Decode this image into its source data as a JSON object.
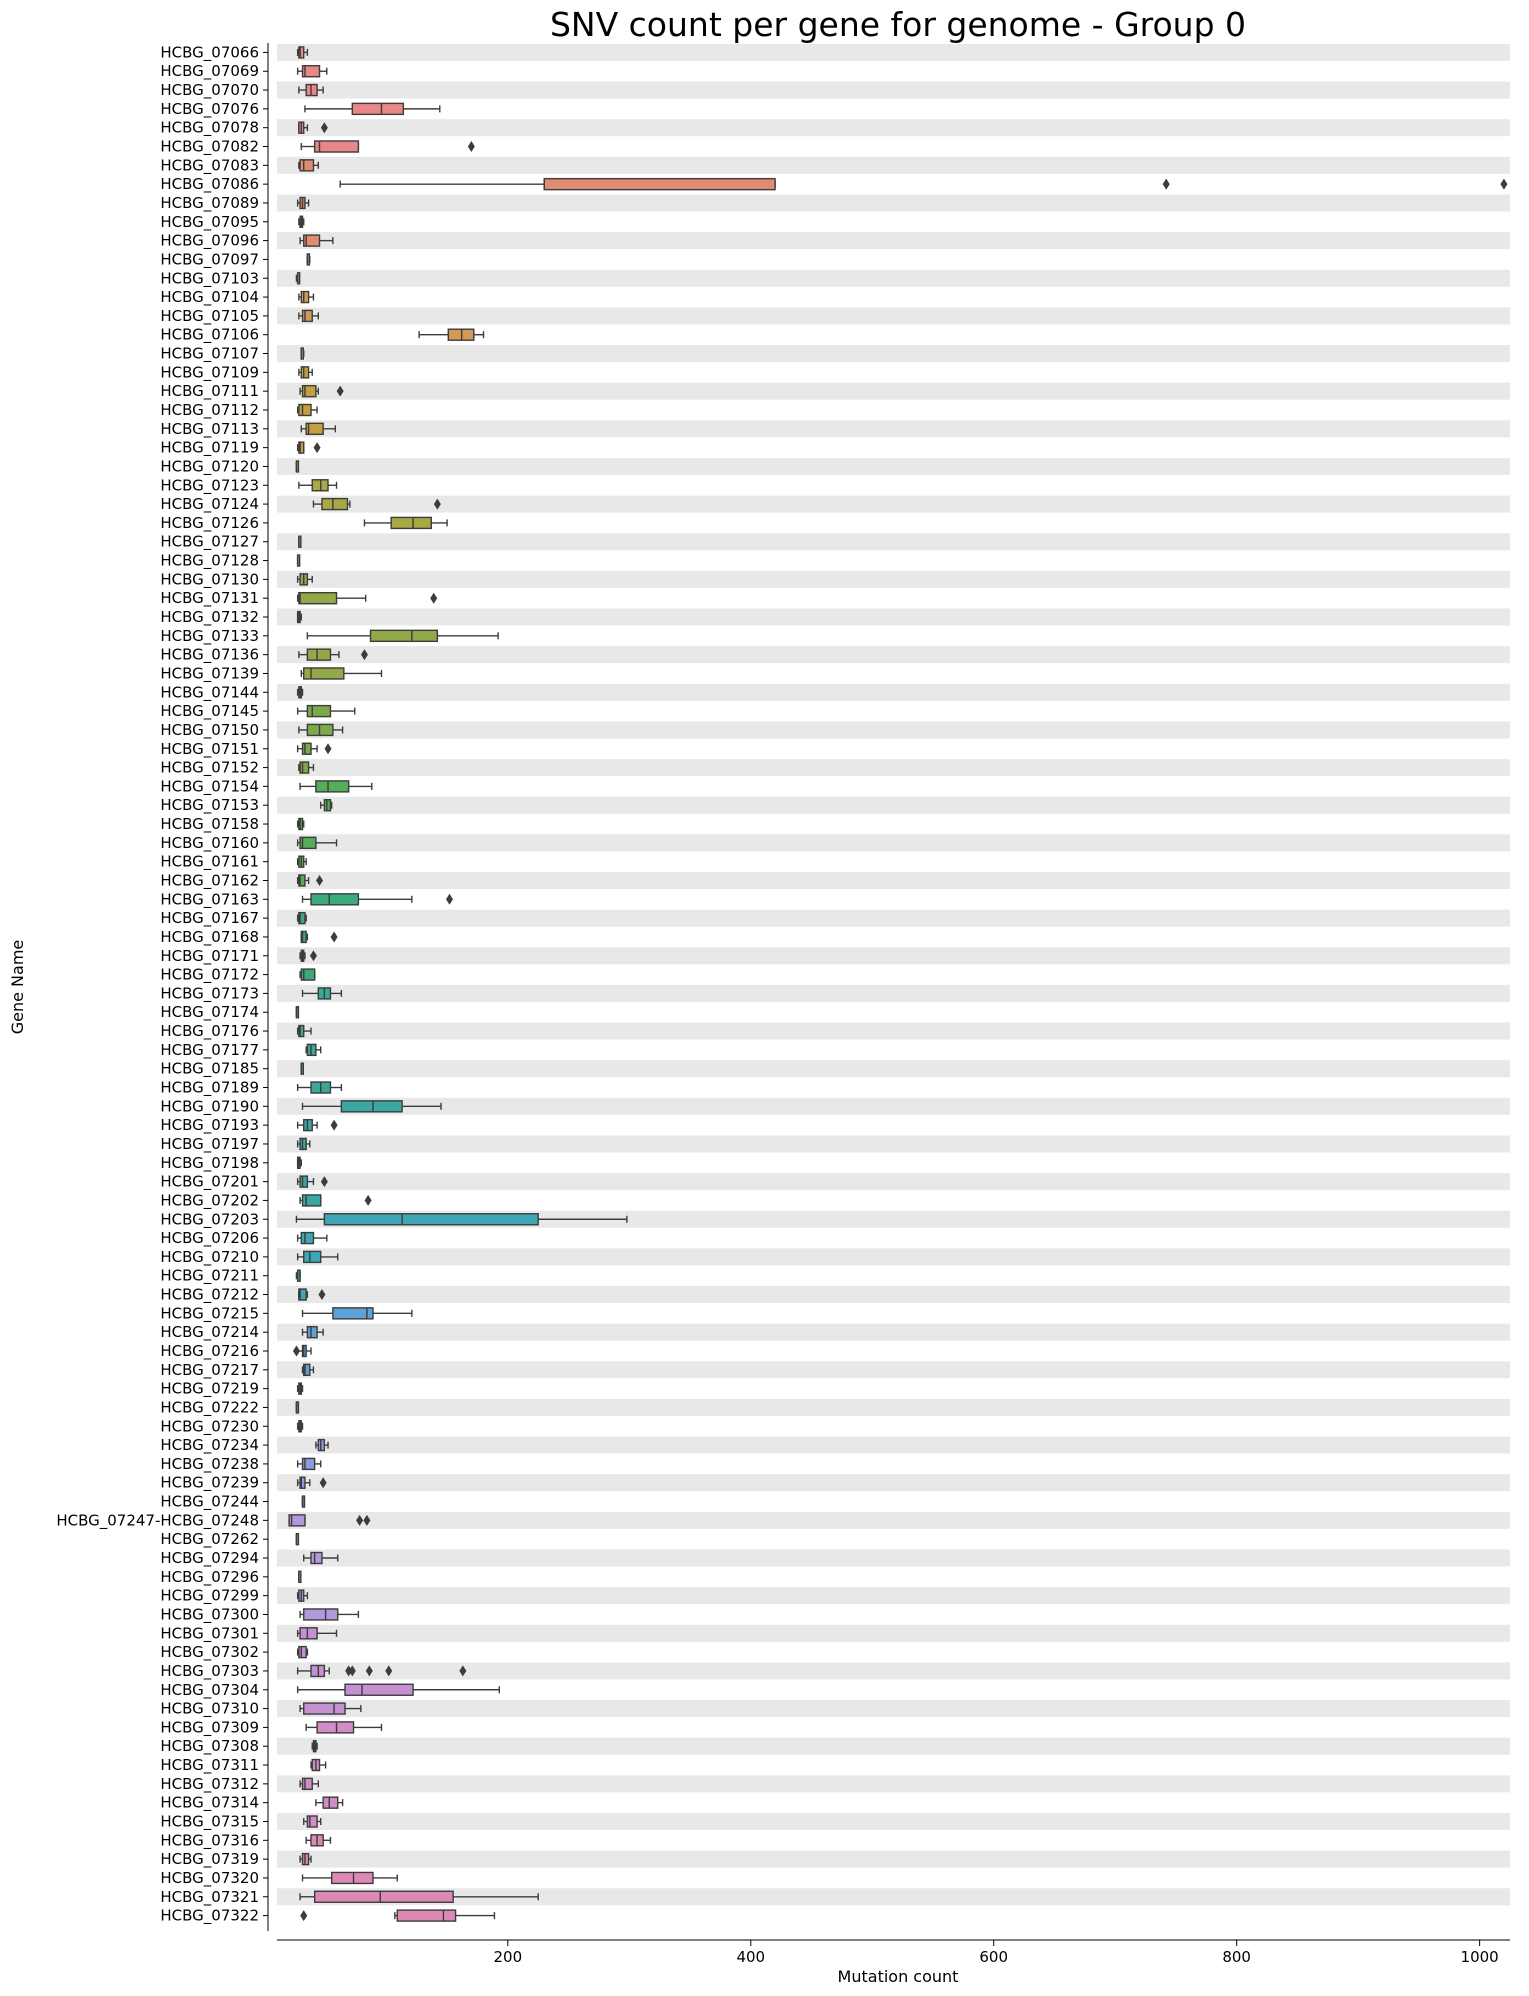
{
  "chart_data": {
    "type": "box",
    "orientation": "horizontal",
    "title": "SNV count per gene for genome - Group 0",
    "xlabel": "Mutation count",
    "ylabel": "Gene Name",
    "xlim": [
      10,
      1025
    ],
    "xticks": [
      200,
      400,
      600,
      800,
      1000
    ],
    "row_banding": true,
    "categories": [
      "HCBG_07066",
      "HCBG_07069",
      "HCBG_07070",
      "HCBG_07076",
      "HCBG_07078",
      "HCBG_07082",
      "HCBG_07083",
      "HCBG_07086",
      "HCBG_07089",
      "HCBG_07095",
      "HCBG_07096",
      "HCBG_07097",
      "HCBG_07103",
      "HCBG_07104",
      "HCBG_07105",
      "HCBG_07106",
      "HCBG_07107",
      "HCBG_07109",
      "HCBG_07111",
      "HCBG_07112",
      "HCBG_07113",
      "HCBG_07119",
      "HCBG_07120",
      "HCBG_07123",
      "HCBG_07124",
      "HCBG_07126",
      "HCBG_07127",
      "HCBG_07128",
      "HCBG_07130",
      "HCBG_07131",
      "HCBG_07132",
      "HCBG_07133",
      "HCBG_07136",
      "HCBG_07139",
      "HCBG_07144",
      "HCBG_07145",
      "HCBG_07150",
      "HCBG_07151",
      "HCBG_07152",
      "HCBG_07154",
      "HCBG_07153",
      "HCBG_07158",
      "HCBG_07160",
      "HCBG_07161",
      "HCBG_07162",
      "HCBG_07163",
      "HCBG_07167",
      "HCBG_07168",
      "HCBG_07171",
      "HCBG_07172",
      "HCBG_07173",
      "HCBG_07174",
      "HCBG_07176",
      "HCBG_07177",
      "HCBG_07185",
      "HCBG_07189",
      "HCBG_07190",
      "HCBG_07193",
      "HCBG_07197",
      "HCBG_07198",
      "HCBG_07201",
      "HCBG_07202",
      "HCBG_07203",
      "HCBG_07206",
      "HCBG_07210",
      "HCBG_07211",
      "HCBG_07212",
      "HCBG_07215",
      "HCBG_07214",
      "HCBG_07216",
      "HCBG_07217",
      "HCBG_07219",
      "HCBG_07222",
      "HCBG_07230",
      "HCBG_07234",
      "HCBG_07238",
      "HCBG_07239",
      "HCBG_07244",
      "HCBG_07247-HCBG_07248",
      "HCBG_07262",
      "HCBG_07294",
      "HCBG_07296",
      "HCBG_07299",
      "HCBG_07300",
      "HCBG_07301",
      "HCBG_07302",
      "HCBG_07303",
      "HCBG_07304",
      "HCBG_07310",
      "HCBG_07309",
      "HCBG_07308",
      "HCBG_07311",
      "HCBG_07312",
      "HCBG_07314",
      "HCBG_07315",
      "HCBG_07316",
      "HCBG_07319",
      "HCBG_07320",
      "HCBG_07321",
      "HCBG_07322"
    ],
    "boxes": [
      {
        "lo": 27,
        "q1": 28,
        "med": 29,
        "q3": 32,
        "hi": 35,
        "out": []
      },
      {
        "lo": 27,
        "q1": 31,
        "med": 33,
        "q3": 45,
        "hi": 51,
        "out": []
      },
      {
        "lo": 28,
        "q1": 34,
        "med": 38,
        "q3": 43,
        "hi": 48,
        "out": []
      },
      {
        "lo": 33,
        "q1": 72,
        "med": 96,
        "q3": 114,
        "hi": 144,
        "out": []
      },
      {
        "lo": 28,
        "q1": 28,
        "med": 30,
        "q3": 32,
        "hi": 35,
        "out": [
          49
        ]
      },
      {
        "lo": 30,
        "q1": 41,
        "med": 45,
        "q3": 77,
        "hi": 77,
        "out": [
          170
        ]
      },
      {
        "lo": 28,
        "q1": 29,
        "med": 32,
        "q3": 40,
        "hi": 44,
        "out": []
      },
      {
        "lo": 62,
        "q1": 230,
        "med": 230,
        "q3": 420,
        "hi": 420,
        "out": [
          742,
          1020
        ]
      },
      {
        "lo": 27,
        "q1": 29,
        "med": 31,
        "q3": 33,
        "hi": 36,
        "out": []
      },
      {
        "lo": 28,
        "q1": 29,
        "med": 30,
        "q3": 31,
        "hi": 32,
        "out": []
      },
      {
        "lo": 29,
        "q1": 32,
        "med": 34,
        "q3": 45,
        "hi": 56,
        "out": []
      },
      {
        "lo": 35,
        "q1": 35,
        "med": 35,
        "q3": 36,
        "hi": 37,
        "out": []
      },
      {
        "lo": 26,
        "q1": 27,
        "med": 27,
        "q3": 28,
        "hi": 28,
        "out": []
      },
      {
        "lo": 28,
        "q1": 30,
        "med": 32,
        "q3": 36,
        "hi": 40,
        "out": []
      },
      {
        "lo": 28,
        "q1": 31,
        "med": 33,
        "q3": 39,
        "hi": 44,
        "out": []
      },
      {
        "lo": 127,
        "q1": 151,
        "med": 162,
        "q3": 172,
        "hi": 180,
        "out": []
      },
      {
        "lo": 30,
        "q1": 30,
        "med": 30,
        "q3": 31,
        "hi": 32,
        "out": []
      },
      {
        "lo": 28,
        "q1": 30,
        "med": 32,
        "q3": 36,
        "hi": 39,
        "out": []
      },
      {
        "lo": 29,
        "q1": 31,
        "med": 33,
        "q3": 42,
        "hi": 44,
        "out": [
          62
        ]
      },
      {
        "lo": 27,
        "q1": 28,
        "med": 31,
        "q3": 38,
        "hi": 43,
        "out": []
      },
      {
        "lo": 30,
        "q1": 34,
        "med": 36,
        "q3": 48,
        "hi": 58,
        "out": []
      },
      {
        "lo": 27,
        "q1": 28,
        "med": 29,
        "q3": 32,
        "hi": 32,
        "out": [
          43
        ]
      },
      {
        "lo": 26,
        "q1": 26,
        "med": 26,
        "q3": 27,
        "hi": 27,
        "out": []
      },
      {
        "lo": 28,
        "q1": 39,
        "med": 46,
        "q3": 52,
        "hi": 59,
        "out": []
      },
      {
        "lo": 40,
        "q1": 47,
        "med": 56,
        "q3": 68,
        "hi": 70,
        "out": [
          142
        ]
      },
      {
        "lo": 82,
        "q1": 104,
        "med": 122,
        "q3": 137,
        "hi": 150,
        "out": []
      },
      {
        "lo": 28,
        "q1": 28,
        "med": 28,
        "q3": 29,
        "hi": 29,
        "out": []
      },
      {
        "lo": 27,
        "q1": 27,
        "med": 27,
        "q3": 28,
        "hi": 28,
        "out": []
      },
      {
        "lo": 27,
        "q1": 29,
        "med": 32,
        "q3": 35,
        "hi": 39,
        "out": []
      },
      {
        "lo": 27,
        "q1": 28,
        "med": 29,
        "q3": 59,
        "hi": 83,
        "out": [
          139
        ]
      },
      {
        "lo": 27,
        "q1": 27,
        "med": 28,
        "q3": 29,
        "hi": 30,
        "out": []
      },
      {
        "lo": 35,
        "q1": 87,
        "med": 121,
        "q3": 142,
        "hi": 192,
        "out": []
      },
      {
        "lo": 28,
        "q1": 35,
        "med": 43,
        "q3": 54,
        "hi": 61,
        "out": [
          82
        ]
      },
      {
        "lo": 30,
        "q1": 32,
        "med": 38,
        "q3": 65,
        "hi": 96,
        "out": []
      },
      {
        "lo": 27,
        "q1": 28,
        "med": 29,
        "q3": 30,
        "hi": 31,
        "out": []
      },
      {
        "lo": 27,
        "q1": 35,
        "med": 39,
        "q3": 54,
        "hi": 74,
        "out": []
      },
      {
        "lo": 28,
        "q1": 35,
        "med": 45,
        "q3": 56,
        "hi": 64,
        "out": []
      },
      {
        "lo": 27,
        "q1": 31,
        "med": 33,
        "q3": 38,
        "hi": 43,
        "out": [
          52
        ]
      },
      {
        "lo": 28,
        "q1": 29,
        "med": 31,
        "q3": 36,
        "hi": 40,
        "out": []
      },
      {
        "lo": 29,
        "q1": 42,
        "med": 52,
        "q3": 69,
        "hi": 88,
        "out": []
      },
      {
        "lo": 46,
        "q1": 49,
        "med": 51,
        "q3": 54,
        "hi": 55,
        "out": []
      },
      {
        "lo": 27,
        "q1": 28,
        "med": 29,
        "q3": 31,
        "hi": 32,
        "out": []
      },
      {
        "lo": 27,
        "q1": 29,
        "med": 31,
        "q3": 42,
        "hi": 59,
        "out": []
      },
      {
        "lo": 27,
        "q1": 28,
        "med": 30,
        "q3": 32,
        "hi": 34,
        "out": []
      },
      {
        "lo": 27,
        "q1": 28,
        "med": 29,
        "q3": 33,
        "hi": 36,
        "out": [
          45
        ]
      },
      {
        "lo": 31,
        "q1": 38,
        "med": 53,
        "q3": 77,
        "hi": 121,
        "out": [
          152
        ]
      },
      {
        "lo": 27,
        "q1": 28,
        "med": 29,
        "q3": 33,
        "hi": 34,
        "out": []
      },
      {
        "lo": 30,
        "q1": 30,
        "med": 31,
        "q3": 34,
        "hi": 35,
        "out": [
          57
        ]
      },
      {
        "lo": 29,
        "q1": 30,
        "med": 31,
        "q3": 32,
        "hi": 33,
        "out": [
          40
        ]
      },
      {
        "lo": 29,
        "q1": 30,
        "med": 32,
        "q3": 41,
        "hi": 41,
        "out": []
      },
      {
        "lo": 31,
        "q1": 44,
        "med": 49,
        "q3": 54,
        "hi": 63,
        "out": []
      },
      {
        "lo": 26,
        "q1": 26,
        "med": 26,
        "q3": 27,
        "hi": 27,
        "out": []
      },
      {
        "lo": 27,
        "q1": 28,
        "med": 29,
        "q3": 32,
        "hi": 38,
        "out": []
      },
      {
        "lo": 34,
        "q1": 35,
        "med": 38,
        "q3": 42,
        "hi": 46,
        "out": []
      },
      {
        "lo": 30,
        "q1": 30,
        "med": 30,
        "q3": 31,
        "hi": 31,
        "out": []
      },
      {
        "lo": 27,
        "q1": 38,
        "med": 46,
        "q3": 54,
        "hi": 63,
        "out": []
      },
      {
        "lo": 31,
        "q1": 63,
        "med": 89,
        "q3": 113,
        "hi": 145,
        "out": []
      },
      {
        "lo": 27,
        "q1": 32,
        "med": 35,
        "q3": 39,
        "hi": 43,
        "out": [
          57
        ]
      },
      {
        "lo": 27,
        "q1": 29,
        "med": 31,
        "q3": 34,
        "hi": 37,
        "out": []
      },
      {
        "lo": 27,
        "q1": 27,
        "med": 28,
        "q3": 29,
        "hi": 30,
        "out": []
      },
      {
        "lo": 27,
        "q1": 29,
        "med": 31,
        "q3": 35,
        "hi": 40,
        "out": [
          49
        ]
      },
      {
        "lo": 29,
        "q1": 31,
        "med": 34,
        "q3": 46,
        "hi": 46,
        "out": [
          85
        ]
      },
      {
        "lo": 26,
        "q1": 49,
        "med": 113,
        "q3": 225,
        "hi": 298,
        "out": []
      },
      {
        "lo": 27,
        "q1": 30,
        "med": 33,
        "q3": 40,
        "hi": 51,
        "out": []
      },
      {
        "lo": 27,
        "q1": 32,
        "med": 37,
        "q3": 46,
        "hi": 60,
        "out": []
      },
      {
        "lo": 26,
        "q1": 27,
        "med": 27,
        "q3": 29,
        "hi": 29,
        "out": []
      },
      {
        "lo": 28,
        "q1": 28,
        "med": 29,
        "q3": 34,
        "hi": 35,
        "out": [
          47
        ]
      },
      {
        "lo": 31,
        "q1": 56,
        "med": 84,
        "q3": 89,
        "hi": 121,
        "out": []
      },
      {
        "lo": 31,
        "q1": 35,
        "med": 38,
        "q3": 43,
        "hi": 48,
        "out": []
      },
      {
        "lo": 27,
        "q1": 31,
        "med": 32,
        "q3": 34,
        "hi": 38,
        "out": [
          26
        ]
      },
      {
        "lo": 31,
        "q1": 32,
        "med": 33,
        "q3": 37,
        "hi": 40,
        "out": []
      },
      {
        "lo": 27,
        "q1": 28,
        "med": 29,
        "q3": 30,
        "hi": 31,
        "out": []
      },
      {
        "lo": 26,
        "q1": 26,
        "med": 26,
        "q3": 27,
        "hi": 27,
        "out": []
      },
      {
        "lo": 27,
        "q1": 28,
        "med": 29,
        "q3": 30,
        "hi": 31,
        "out": []
      },
      {
        "lo": 42,
        "q1": 44,
        "med": 46,
        "q3": 49,
        "hi": 52,
        "out": []
      },
      {
        "lo": 27,
        "q1": 31,
        "med": 33,
        "q3": 41,
        "hi": 46,
        "out": []
      },
      {
        "lo": 27,
        "q1": 29,
        "med": 30,
        "q3": 33,
        "hi": 37,
        "out": [
          48
        ]
      },
      {
        "lo": 31,
        "q1": 31,
        "med": 31,
        "q3": 32,
        "hi": 32,
        "out": []
      },
      {
        "lo": 20,
        "q1": 20,
        "med": 22,
        "q3": 33,
        "hi": 33,
        "out": [
          78,
          84
        ]
      },
      {
        "lo": 26,
        "q1": 26,
        "med": 26,
        "q3": 27,
        "hi": 27,
        "out": []
      },
      {
        "lo": 32,
        "q1": 38,
        "med": 41,
        "q3": 47,
        "hi": 60,
        "out": []
      },
      {
        "lo": 28,
        "q1": 28,
        "med": 28,
        "q3": 29,
        "hi": 29,
        "out": []
      },
      {
        "lo": 27,
        "q1": 28,
        "med": 30,
        "q3": 32,
        "hi": 35,
        "out": []
      },
      {
        "lo": 29,
        "q1": 32,
        "med": 50,
        "q3": 60,
        "hi": 77,
        "out": []
      },
      {
        "lo": 27,
        "q1": 29,
        "med": 35,
        "q3": 43,
        "hi": 59,
        "out": []
      },
      {
        "lo": 27,
        "q1": 28,
        "med": 30,
        "q3": 34,
        "hi": 35,
        "out": []
      },
      {
        "lo": 27,
        "q1": 38,
        "med": 44,
        "q3": 49,
        "hi": 53,
        "out": [
          69,
          72,
          86,
          102,
          163
        ]
      },
      {
        "lo": 27,
        "q1": 66,
        "med": 80,
        "q3": 122,
        "hi": 193,
        "out": []
      },
      {
        "lo": 29,
        "q1": 32,
        "med": 57,
        "q3": 66,
        "hi": 79,
        "out": []
      },
      {
        "lo": 34,
        "q1": 43,
        "med": 59,
        "q3": 73,
        "hi": 96,
        "out": []
      },
      {
        "lo": 39,
        "q1": 40,
        "med": 41,
        "q3": 42,
        "hi": 43,
        "out": []
      },
      {
        "lo": 38,
        "q1": 39,
        "med": 42,
        "q3": 45,
        "hi": 50,
        "out": []
      },
      {
        "lo": 29,
        "q1": 31,
        "med": 33,
        "q3": 39,
        "hi": 44,
        "out": []
      },
      {
        "lo": 42,
        "q1": 48,
        "med": 53,
        "q3": 60,
        "hi": 64,
        "out": []
      },
      {
        "lo": 32,
        "q1": 35,
        "med": 37,
        "q3": 43,
        "hi": 46,
        "out": []
      },
      {
        "lo": 34,
        "q1": 38,
        "med": 43,
        "q3": 48,
        "hi": 54,
        "out": []
      },
      {
        "lo": 29,
        "q1": 31,
        "med": 33,
        "q3": 36,
        "hi": 38,
        "out": []
      },
      {
        "lo": 31,
        "q1": 55,
        "med": 73,
        "q3": 89,
        "hi": 109,
        "out": []
      },
      {
        "lo": 29,
        "q1": 41,
        "med": 95,
        "q3": 155,
        "hi": 225,
        "out": []
      },
      {
        "lo": 107,
        "q1": 109,
        "med": 147,
        "q3": 157,
        "hi": 189,
        "out": [
          32
        ]
      }
    ],
    "colors": [
      "#e88787",
      "#e08c73",
      "#d39955",
      "#c3a042",
      "#a8a845",
      "#93a848",
      "#7caa48",
      "#55ad57",
      "#3bab7c",
      "#3aa894",
      "#3ba7a3",
      "#3ea6b5",
      "#5ca2d6",
      "#8d9cdc",
      "#b199dc",
      "#c691d2",
      "#d28dc8",
      "#de89b5"
    ],
    "median_color": "#3c3c3c",
    "band_color": "#e8e8e8"
  }
}
